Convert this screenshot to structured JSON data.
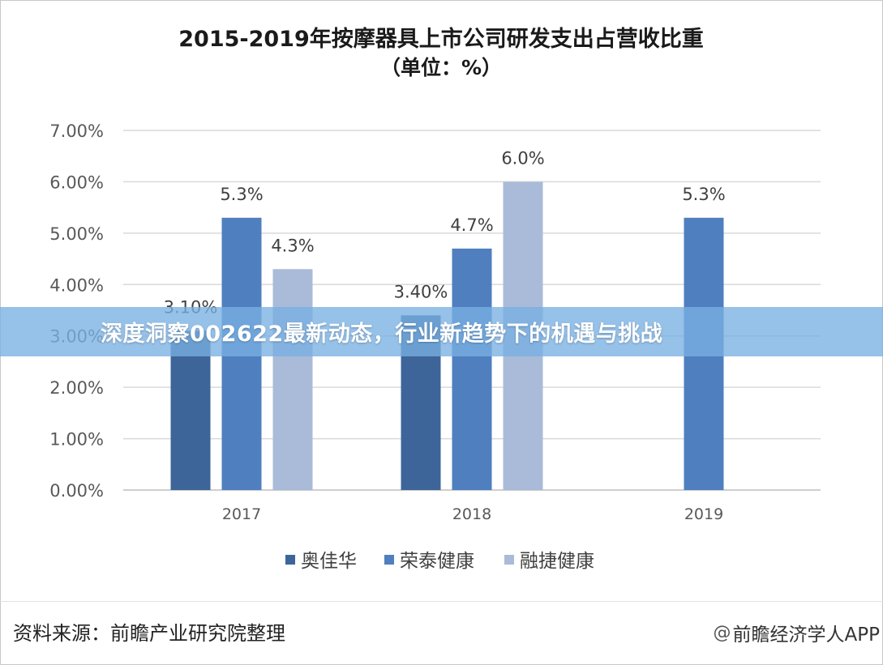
{
  "chart_data": {
    "type": "bar",
    "title": "2015-2019年按摩器具上市公司研发支出占营收比重",
    "subtitle": "（单位：%）",
    "categories": [
      "2017",
      "2018",
      "2019"
    ],
    "series": [
      {
        "name": "奥佳华",
        "color": "#3d6599",
        "values": [
          3.1,
          3.4,
          null
        ],
        "labels": [
          "3.10%",
          "3.40%",
          ""
        ]
      },
      {
        "name": "荣泰健康",
        "color": "#4f7fbf",
        "values": [
          5.3,
          4.7,
          5.3
        ],
        "labels": [
          "5.3%",
          "4.7%",
          "5.3%"
        ]
      },
      {
        "name": "融捷健康",
        "color": "#a9bbd8",
        "values": [
          4.3,
          6.0,
          null
        ],
        "labels": [
          "4.3%",
          "6.0%",
          ""
        ]
      }
    ],
    "yticks": [
      "0.00%",
      "1.00%",
      "2.00%",
      "3.00%",
      "4.00%",
      "5.00%",
      "6.00%",
      "7.00%"
    ],
    "ylim": [
      0,
      7
    ],
    "grid": true,
    "legend": "bottom"
  },
  "banner": {
    "text": "深度洞察002622最新动态，行业新趋势下的机遇与挑战"
  },
  "source": {
    "text": "资料来源：前瞻产业研究院整理"
  },
  "credit": {
    "icon": "weibo-at-icon",
    "icon_glyph": "@",
    "text": "前瞻经济学人APP"
  }
}
